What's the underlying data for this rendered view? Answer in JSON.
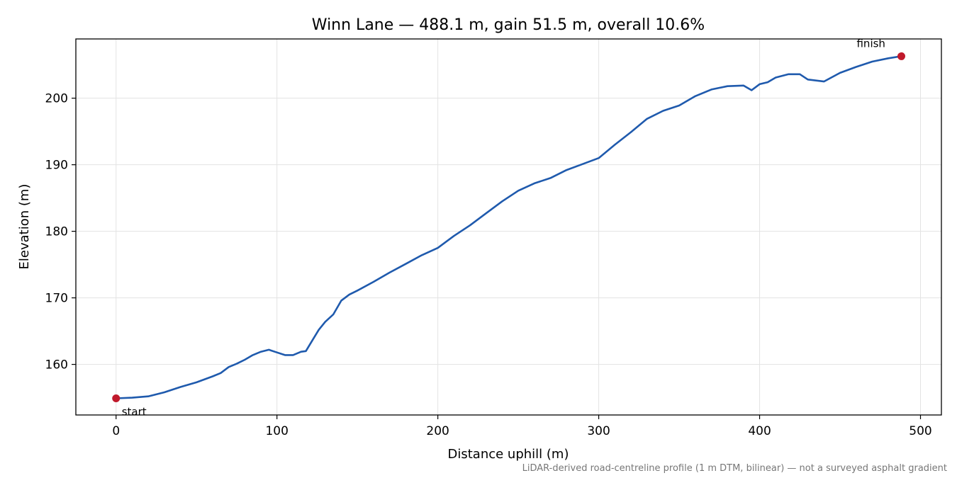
{
  "chart_data": {
    "type": "line",
    "title": "Winn Lane — 488.1 m, gain 51.5 m, overall 10.6%",
    "xlabel": "Distance uphill (m)",
    "ylabel": "Elevation (m)",
    "xlim": [
      -25,
      513
    ],
    "ylim": [
      152.4,
      208.9
    ],
    "xticks": [
      0,
      100,
      200,
      300,
      400,
      500
    ],
    "yticks": [
      160,
      170,
      180,
      190,
      200
    ],
    "grid": true,
    "footnote": "LiDAR-derived road-centreline profile (1 m DTM, bilinear) — not a surveyed asphalt gradient",
    "line_color": "#1f5aad",
    "marker_color": "#c0192b",
    "series": [
      {
        "x": [
          0,
          10,
          20,
          30,
          40,
          50,
          60,
          65,
          70,
          75,
          80,
          85,
          90,
          95,
          100,
          105,
          110,
          115,
          118,
          122,
          126,
          130,
          135,
          140,
          145,
          150,
          160,
          170,
          180,
          190,
          200,
          210,
          220,
          230,
          240,
          250,
          260,
          270,
          280,
          290,
          300,
          310,
          320,
          330,
          340,
          350,
          360,
          370,
          380,
          390,
          395,
          400,
          405,
          410,
          418,
          425,
          430,
          440,
          450,
          460,
          470,
          480,
          488.1
        ],
        "y": [
          154.9,
          155.0,
          155.2,
          155.8,
          156.6,
          157.3,
          158.2,
          158.7,
          159.6,
          160.1,
          160.7,
          161.4,
          161.9,
          162.2,
          161.8,
          161.4,
          161.4,
          161.9,
          162.0,
          163.6,
          165.2,
          166.4,
          167.5,
          169.6,
          170.5,
          171.1,
          172.4,
          173.8,
          175.1,
          176.4,
          177.5,
          179.3,
          180.9,
          182.7,
          184.5,
          186.1,
          187.2,
          188.0,
          189.2,
          190.1,
          191.0,
          193.0,
          194.9,
          196.9,
          198.1,
          198.9,
          200.3,
          201.3,
          201.8,
          201.9,
          201.2,
          202.1,
          202.4,
          203.1,
          203.6,
          203.6,
          202.8,
          202.5,
          203.8,
          204.7,
          205.5,
          206.0,
          206.3
        ]
      }
    ],
    "annotations": [
      {
        "text": "start",
        "x": 0,
        "y": 154.9
      },
      {
        "text": "finish",
        "x": 488.1,
        "y": 206.3
      }
    ]
  }
}
